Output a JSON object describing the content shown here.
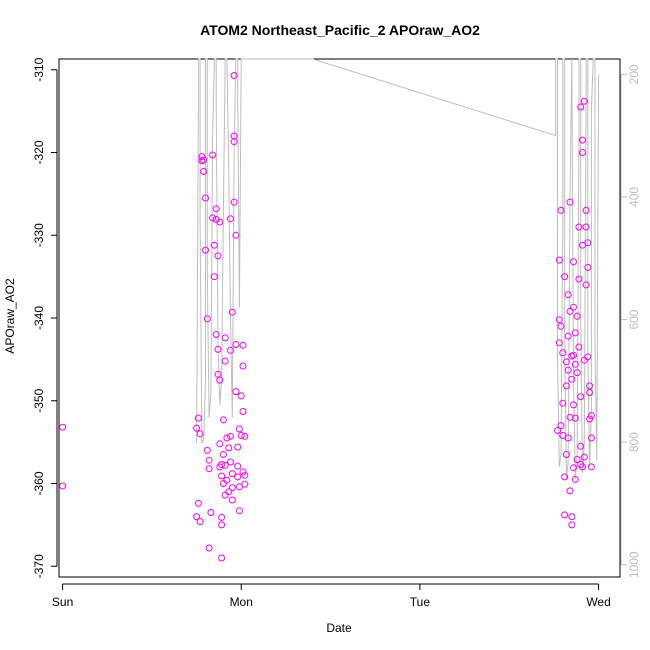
{
  "chart_data": {
    "type": "scatter",
    "title": "ATOM2 Northeast_Pacific_2 APOraw_AO2",
    "xlabel": "Date",
    "ylabel": "APOraw_AO2",
    "x_ticks": [
      "Sun",
      "Mon",
      "Tue",
      "Wed"
    ],
    "y_ticks": [
      -310,
      -320,
      -330,
      -340,
      -350,
      -360,
      -370
    ],
    "y2_ticks": [
      200,
      400,
      600,
      800,
      1000
    ],
    "xlim_days": [
      -0.02,
      3.12
    ],
    "ylim": [
      -371.3,
      -308.7
    ],
    "y2lim": [
      1020,
      175
    ],
    "point_color": "#ff00ff",
    "line_color": "#bdbdbd",
    "grid": false,
    "series": [
      {
        "kind": "points",
        "points": [
          [
            0.0,
            -353.2
          ],
          [
            0.0,
            -360.3
          ],
          [
            0.75,
            -364.0
          ],
          [
            0.75,
            -353.3
          ],
          [
            0.76,
            -352.1
          ],
          [
            0.76,
            -362.4
          ],
          [
            0.77,
            -354.0
          ],
          [
            0.77,
            -364.6
          ],
          [
            0.78,
            -321.0
          ],
          [
            0.78,
            -320.5
          ],
          [
            0.79,
            -320.9
          ],
          [
            0.79,
            -322.3
          ],
          [
            0.8,
            -325.5
          ],
          [
            0.8,
            -331.8
          ],
          [
            0.81,
            -340.1
          ],
          [
            0.81,
            -356.0
          ],
          [
            0.82,
            -357.2
          ],
          [
            0.82,
            -358.2
          ],
          [
            0.82,
            -367.8
          ],
          [
            0.83,
            -363.5
          ],
          [
            0.84,
            -320.3
          ],
          [
            0.84,
            -327.9
          ],
          [
            0.85,
            -331.2
          ],
          [
            0.85,
            -335.0
          ],
          [
            0.86,
            -326.8
          ],
          [
            0.86,
            -328.1
          ],
          [
            0.86,
            -342.0
          ],
          [
            0.87,
            -332.5
          ],
          [
            0.87,
            -343.8
          ],
          [
            0.87,
            -346.8
          ],
          [
            0.88,
            -328.4
          ],
          [
            0.88,
            -347.5
          ],
          [
            0.88,
            -355.2
          ],
          [
            0.88,
            -358.0
          ],
          [
            0.89,
            -359.1
          ],
          [
            0.89,
            -357.7
          ],
          [
            0.89,
            -364.1
          ],
          [
            0.89,
            -365.0
          ],
          [
            0.89,
            -369.0
          ],
          [
            0.9,
            -352.3
          ],
          [
            0.9,
            -356.5
          ],
          [
            0.9,
            -360.0
          ],
          [
            0.91,
            -342.4
          ],
          [
            0.91,
            -345.2
          ],
          [
            0.91,
            -357.8
          ],
          [
            0.91,
            -361.4
          ],
          [
            0.92,
            -354.5
          ],
          [
            0.92,
            -359.6
          ],
          [
            0.93,
            -355.7
          ],
          [
            0.93,
            -361.0
          ],
          [
            0.94,
            -328.0
          ],
          [
            0.94,
            -343.9
          ],
          [
            0.94,
            -354.3
          ],
          [
            0.94,
            -357.4
          ],
          [
            0.95,
            -339.3
          ],
          [
            0.95,
            -358.8
          ],
          [
            0.95,
            -360.5
          ],
          [
            0.95,
            -362.0
          ],
          [
            0.96,
            -310.7
          ],
          [
            0.96,
            -318.0
          ],
          [
            0.96,
            -318.7
          ],
          [
            0.96,
            -326.0
          ],
          [
            0.97,
            -330.0
          ],
          [
            0.97,
            -343.2
          ],
          [
            0.97,
            -348.9
          ],
          [
            0.98,
            -355.6
          ],
          [
            0.98,
            -357.9
          ],
          [
            0.98,
            -359.2
          ],
          [
            0.99,
            -360.4
          ],
          [
            0.99,
            -363.3
          ],
          [
            0.99,
            -353.4
          ],
          [
            1.0,
            -349.4
          ],
          [
            1.0,
            -354.2
          ],
          [
            1.01,
            -343.3
          ],
          [
            1.01,
            -345.8
          ],
          [
            1.01,
            -351.3
          ],
          [
            1.01,
            -358.6
          ],
          [
            1.02,
            -359.0
          ],
          [
            1.02,
            -360.1
          ],
          [
            1.02,
            -354.3
          ],
          [
            2.77,
            -353.6
          ],
          [
            2.78,
            -333.0
          ],
          [
            2.78,
            -340.2
          ],
          [
            2.78,
            -343.0
          ],
          [
            2.79,
            -327.0
          ],
          [
            2.79,
            -341.0
          ],
          [
            2.79,
            -353.0
          ],
          [
            2.8,
            -344.2
          ],
          [
            2.8,
            -350.3
          ],
          [
            2.8,
            -354.2
          ],
          [
            2.81,
            -335.0
          ],
          [
            2.81,
            -359.2
          ],
          [
            2.81,
            -363.8
          ],
          [
            2.82,
            -345.3
          ],
          [
            2.82,
            -348.2
          ],
          [
            2.82,
            -356.5
          ],
          [
            2.83,
            -337.2
          ],
          [
            2.83,
            -342.2
          ],
          [
            2.83,
            -346.3
          ],
          [
            2.84,
            -326.0
          ],
          [
            2.84,
            -339.2
          ],
          [
            2.84,
            -352.0
          ],
          [
            2.84,
            -360.9
          ],
          [
            2.85,
            -344.6
          ],
          [
            2.85,
            -347.4
          ],
          [
            2.85,
            -364.0
          ],
          [
            2.85,
            -365.0
          ],
          [
            2.86,
            -333.2
          ],
          [
            2.86,
            -338.7
          ],
          [
            2.86,
            -344.5
          ],
          [
            2.86,
            -350.5
          ],
          [
            2.87,
            -341.8
          ],
          [
            2.87,
            -345.6
          ],
          [
            2.87,
            -352.1
          ],
          [
            2.88,
            -339.8
          ],
          [
            2.88,
            -346.6
          ],
          [
            2.88,
            -357.1
          ],
          [
            2.89,
            -329.0
          ],
          [
            2.89,
            -335.3
          ],
          [
            2.89,
            -343.5
          ],
          [
            2.9,
            -314.5
          ],
          [
            2.9,
            -349.5
          ],
          [
            2.9,
            -357.7
          ],
          [
            2.91,
            -318.5
          ],
          [
            2.91,
            -320.0
          ],
          [
            2.91,
            -331.2
          ],
          [
            2.92,
            -313.8
          ],
          [
            2.92,
            -345.1
          ],
          [
            2.92,
            -356.8
          ],
          [
            2.93,
            -327.0
          ],
          [
            2.93,
            -329.0
          ],
          [
            2.93,
            -336.0
          ],
          [
            2.94,
            -330.9
          ],
          [
            2.94,
            -333.9
          ],
          [
            2.94,
            -344.7
          ],
          [
            2.95,
            -348.2
          ],
          [
            2.95,
            -349.0
          ],
          [
            2.95,
            -352.2
          ],
          [
            2.96,
            -354.5
          ],
          [
            2.96,
            -358.0
          ],
          [
            2.96,
            -351.8
          ],
          [
            2.87,
            -359.5
          ],
          [
            2.83,
            -354.5
          ],
          [
            2.86,
            -358.1
          ],
          [
            2.9,
            -355.5
          ],
          [
            2.91,
            -358.0
          ]
        ]
      },
      {
        "kind": "line",
        "y_axis": "right",
        "points": [
          [
            0.75,
            802
          ],
          [
            0.76,
            240
          ],
          [
            0.76,
            175
          ],
          [
            0.77,
            175
          ],
          [
            0.77,
            440
          ],
          [
            0.78,
            802
          ],
          [
            0.79,
            795
          ],
          [
            0.8,
            700
          ],
          [
            0.8,
            175
          ],
          [
            0.81,
            175
          ],
          [
            0.81,
            520
          ],
          [
            0.82,
            760
          ],
          [
            0.83,
            720
          ],
          [
            0.84,
            300
          ],
          [
            0.85,
            175
          ],
          [
            0.86,
            175
          ],
          [
            0.86,
            250
          ],
          [
            0.87,
            640
          ],
          [
            0.88,
            740
          ],
          [
            0.89,
            700
          ],
          [
            0.9,
            420
          ],
          [
            0.91,
            175
          ],
          [
            0.92,
            175
          ],
          [
            0.93,
            350
          ],
          [
            0.94,
            600
          ],
          [
            0.95,
            760
          ],
          [
            0.96,
            330
          ],
          [
            0.97,
            175
          ],
          [
            0.98,
            175
          ],
          [
            0.98,
            240
          ],
          [
            0.99,
            580
          ],
          [
            1.0,
            175
          ],
          [
            1.02,
            175
          ],
          [
            1.4,
            175
          ],
          [
            2.76,
            300
          ],
          [
            2.76,
            175
          ],
          [
            2.77,
            175
          ],
          [
            2.77,
            660
          ],
          [
            2.78,
            840
          ],
          [
            2.79,
            820
          ],
          [
            2.8,
            450
          ],
          [
            2.8,
            175
          ],
          [
            2.81,
            175
          ],
          [
            2.81,
            620
          ],
          [
            2.82,
            860
          ],
          [
            2.83,
            830
          ],
          [
            2.84,
            400
          ],
          [
            2.85,
            175
          ],
          [
            2.85,
            175
          ],
          [
            2.86,
            700
          ],
          [
            2.87,
            860
          ],
          [
            2.88,
            820
          ],
          [
            2.89,
            320
          ],
          [
            2.89,
            175
          ],
          [
            2.9,
            175
          ],
          [
            2.9,
            600
          ],
          [
            2.91,
            850
          ],
          [
            2.92,
            800
          ],
          [
            2.93,
            250
          ],
          [
            2.93,
            175
          ],
          [
            2.94,
            175
          ],
          [
            2.94,
            650
          ],
          [
            2.95,
            840
          ],
          [
            2.96,
            750
          ],
          [
            2.96,
            260
          ],
          [
            2.97,
            175
          ],
          [
            2.98,
            175
          ],
          [
            2.98,
            640
          ],
          [
            2.99,
            830
          ],
          [
            3.0,
            200
          ]
        ]
      }
    ]
  }
}
